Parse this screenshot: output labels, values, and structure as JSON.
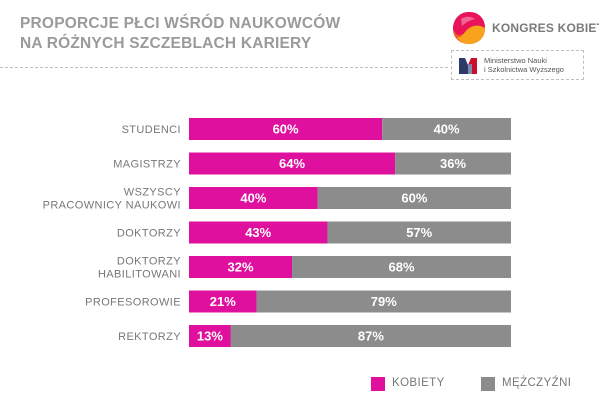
{
  "header": {
    "title_line1": "PROPORCJE PŁCI WŚRÓD NAUKOWCÓW",
    "title_line2": "NA RÓŻNYCH SZCZEBLACH KARIERY"
  },
  "logos": {
    "kongres_text": "KONGRES KOBIET",
    "ministry_line1": "Ministerstwo Nauki",
    "ministry_line2": "i Szkolnictwa Wyższego"
  },
  "colors": {
    "women": "#e0109e",
    "men": "#8c8c8c"
  },
  "chart_data": {
    "type": "bar",
    "orientation": "horizontal",
    "stacked": true,
    "categories": [
      [
        "STUDENCI"
      ],
      [
        "MAGISTRZY"
      ],
      [
        "WSZYSCY",
        "PRACOWNICY NAUKOWI"
      ],
      [
        "DOKTORZY"
      ],
      [
        "DOKTORZY",
        "HABILITOWANI"
      ],
      [
        "PROFESOROWIE"
      ],
      [
        "REKTORZY"
      ]
    ],
    "series": [
      {
        "name": "KOBIETY",
        "values": [
          60,
          64,
          40,
          43,
          32,
          21,
          13
        ]
      },
      {
        "name": "MĘŻCZYŹNI",
        "values": [
          40,
          36,
          60,
          57,
          68,
          79,
          87
        ]
      }
    ],
    "value_suffix": "%",
    "xlim": [
      0,
      100
    ],
    "grid": false,
    "legend_position": "bottom-right"
  }
}
